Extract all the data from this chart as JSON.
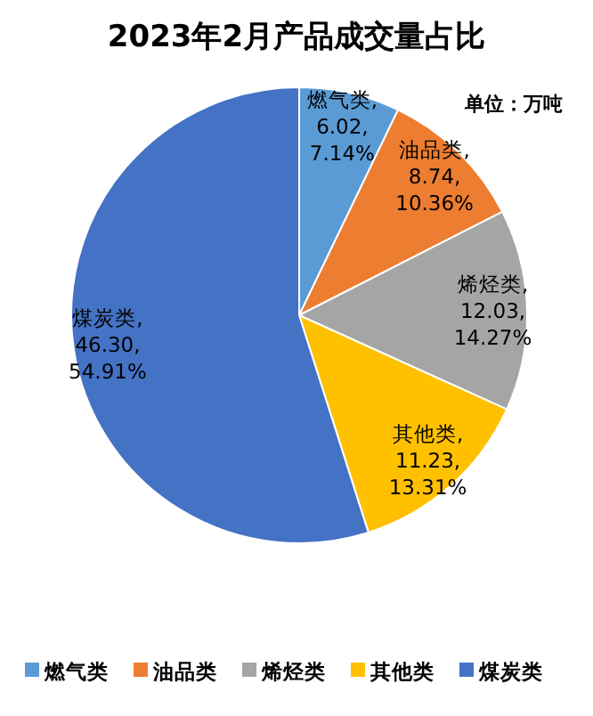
{
  "chart_data": {
    "type": "pie",
    "title": "2023年2月产品成交量占比",
    "subtitle": "单位：万吨",
    "categories": [
      "燃气类",
      "油品类",
      "烯烃类",
      "其他类",
      "煤炭类"
    ],
    "values": [
      6.02,
      8.74,
      12.03,
      11.23,
      46.3
    ],
    "colors": [
      "#5b9bd5",
      "#ed7d31",
      "#a5a5a5",
      "#ffc000",
      "#4472c4"
    ],
    "value_labels": [
      "燃气类, 6.02, 7.14%",
      "油品类, 8.74, 10.36%",
      "烯烃类, 12.03, 14.27%",
      "其他类, 11.23, 13.31%",
      "煤炭类, 46.30, 54.91%"
    ],
    "legend": "bottom"
  }
}
